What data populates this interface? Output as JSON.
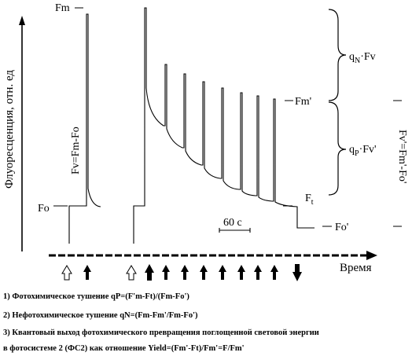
{
  "diagram": {
    "y_axis_label": "Флуоресценция, отн. ед",
    "x_axis_label": "Время",
    "labels": {
      "fm": "Fm",
      "fo": "Fo",
      "fv": "Fv=Fm-Fo",
      "fm_prime": "Fm'",
      "ft_main": "F",
      "ft_sub": "t",
      "fo_prime": "Fo'",
      "qn_main": "q",
      "qn_sub": "N",
      "qn_rest": "·Fv",
      "qp_main": "q",
      "qp_sub": "P",
      "qp_rest": "·Fv'",
      "fv_prime": "Fv'=Fm'-Fo'",
      "timescale": "60 с"
    }
  },
  "notes": [
    "1)  Фотохимическое тушение qP=(F'm-Ft)/(Fm-Fo')",
    "2)  Нефотохимическое тушение qN=(Fm-Fm'/Fm-Fo')",
    "3)  Квантовый выход фотохимического превращения поглощенной световой энергии",
    "      в фотосистеме 2 (ФС2)  как  отношение Yield=(Fm'-Ft)/Fm'=F/Fm'"
  ]
}
